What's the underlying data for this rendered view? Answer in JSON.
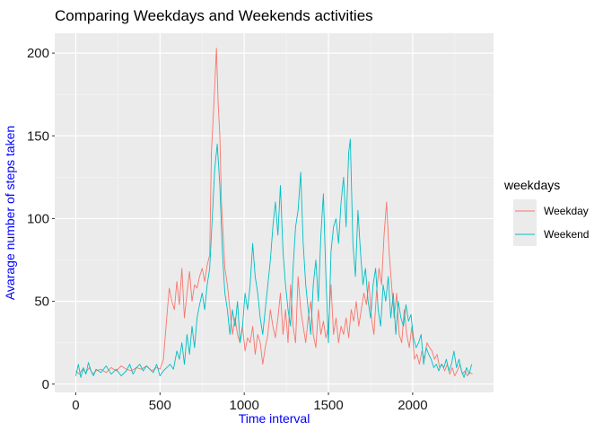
{
  "chart_data": {
    "type": "line",
    "title": "Comparing Weekdays and Weekends activities",
    "xlabel": "Time interval",
    "ylabel": "Avarage number of steps taken",
    "xlim": [
      -125,
      2480
    ],
    "ylim": [
      -5,
      212
    ],
    "x_ticks": [
      0,
      500,
      1000,
      1500,
      2000
    ],
    "y_ticks": [
      0,
      50,
      100,
      150,
      200
    ],
    "x_tick_labels": [
      "0",
      "500",
      "1000",
      "1500",
      "2000"
    ],
    "y_tick_labels": [
      "0",
      "50",
      "100",
      "150",
      "200"
    ],
    "label_color": "#0000ff",
    "panel_color": "#ebebeb",
    "grid": true,
    "legend": {
      "title": "weekdays",
      "position": "right",
      "entries": [
        "Weekday",
        "Weekend"
      ]
    },
    "series": [
      {
        "name": "Weekday",
        "color": "#f8766d",
        "points": [
          [
            0,
            8
          ],
          [
            20,
            6
          ],
          [
            40,
            9
          ],
          [
            60,
            7
          ],
          [
            80,
            10
          ],
          [
            100,
            6
          ],
          [
            120,
            8
          ],
          [
            150,
            9
          ],
          [
            180,
            7
          ],
          [
            210,
            10
          ],
          [
            240,
            8
          ],
          [
            270,
            11
          ],
          [
            300,
            9
          ],
          [
            330,
            8
          ],
          [
            360,
            10
          ],
          [
            390,
            9
          ],
          [
            420,
            11
          ],
          [
            450,
            8
          ],
          [
            480,
            10
          ],
          [
            500,
            9
          ],
          [
            520,
            15
          ],
          [
            540,
            40
          ],
          [
            555,
            58
          ],
          [
            570,
            50
          ],
          [
            585,
            45
          ],
          [
            600,
            62
          ],
          [
            615,
            48
          ],
          [
            630,
            70
          ],
          [
            645,
            40
          ],
          [
            660,
            55
          ],
          [
            675,
            68
          ],
          [
            690,
            50
          ],
          [
            705,
            60
          ],
          [
            720,
            58
          ],
          [
            735,
            65
          ],
          [
            750,
            70
          ],
          [
            765,
            62
          ],
          [
            780,
            72
          ],
          [
            795,
            78
          ],
          [
            805,
            140
          ],
          [
            815,
            160
          ],
          [
            825,
            180
          ],
          [
            835,
            203
          ],
          [
            845,
            170
          ],
          [
            855,
            150
          ],
          [
            865,
            110
          ],
          [
            875,
            90
          ],
          [
            885,
            70
          ],
          [
            900,
            60
          ],
          [
            915,
            45
          ],
          [
            930,
            30
          ],
          [
            945,
            40
          ],
          [
            960,
            30
          ],
          [
            975,
            25
          ],
          [
            990,
            35
          ],
          [
            1005,
            20
          ],
          [
            1020,
            28
          ],
          [
            1035,
            25
          ],
          [
            1050,
            35
          ],
          [
            1065,
            18
          ],
          [
            1080,
            30
          ],
          [
            1095,
            25
          ],
          [
            1110,
            12
          ],
          [
            1125,
            22
          ],
          [
            1140,
            30
          ],
          [
            1155,
            45
          ],
          [
            1170,
            35
          ],
          [
            1185,
            28
          ],
          [
            1200,
            40
          ],
          [
            1215,
            55
          ],
          [
            1230,
            30
          ],
          [
            1245,
            45
          ],
          [
            1260,
            25
          ],
          [
            1275,
            60
          ],
          [
            1290,
            35
          ],
          [
            1305,
            25
          ],
          [
            1320,
            65
          ],
          [
            1335,
            45
          ],
          [
            1350,
            35
          ],
          [
            1365,
            25
          ],
          [
            1380,
            40
          ],
          [
            1395,
            50
          ],
          [
            1410,
            30
          ],
          [
            1425,
            22
          ],
          [
            1440,
            45
          ],
          [
            1455,
            30
          ],
          [
            1470,
            38
          ],
          [
            1485,
            28
          ],
          [
            1500,
            35
          ],
          [
            1515,
            60
          ],
          [
            1530,
            30
          ],
          [
            1545,
            40
          ],
          [
            1560,
            25
          ],
          [
            1575,
            35
          ],
          [
            1590,
            30
          ],
          [
            1605,
            40
          ],
          [
            1620,
            28
          ],
          [
            1635,
            45
          ],
          [
            1650,
            38
          ],
          [
            1665,
            50
          ],
          [
            1680,
            35
          ],
          [
            1695,
            45
          ],
          [
            1710,
            55
          ],
          [
            1725,
            48
          ],
          [
            1740,
            62
          ],
          [
            1755,
            40
          ],
          [
            1770,
            30
          ],
          [
            1785,
            55
          ],
          [
            1800,
            70
          ],
          [
            1815,
            60
          ],
          [
            1830,
            90
          ],
          [
            1845,
            110
          ],
          [
            1860,
            80
          ],
          [
            1875,
            60
          ],
          [
            1890,
            40
          ],
          [
            1905,
            55
          ],
          [
            1920,
            30
          ],
          [
            1935,
            25
          ],
          [
            1950,
            45
          ],
          [
            1965,
            30
          ],
          [
            1980,
            22
          ],
          [
            1995,
            35
          ],
          [
            2010,
            15
          ],
          [
            2025,
            18
          ],
          [
            2040,
            12
          ],
          [
            2055,
            20
          ],
          [
            2070,
            15
          ],
          [
            2085,
            25
          ],
          [
            2100,
            22
          ],
          [
            2115,
            20
          ],
          [
            2130,
            15
          ],
          [
            2145,
            18
          ],
          [
            2160,
            10
          ],
          [
            2175,
            12
          ],
          [
            2190,
            8
          ],
          [
            2205,
            12
          ],
          [
            2220,
            6
          ],
          [
            2235,
            10
          ],
          [
            2250,
            5
          ],
          [
            2265,
            8
          ],
          [
            2280,
            12
          ],
          [
            2295,
            6
          ],
          [
            2310,
            8
          ],
          [
            2325,
            5
          ],
          [
            2340,
            7
          ],
          [
            2355,
            6
          ]
        ]
      },
      {
        "name": "Weekend",
        "color": "#00bfc4",
        "points": [
          [
            0,
            5
          ],
          [
            15,
            12
          ],
          [
            30,
            4
          ],
          [
            45,
            10
          ],
          [
            60,
            6
          ],
          [
            75,
            13
          ],
          [
            90,
            8
          ],
          [
            105,
            5
          ],
          [
            120,
            9
          ],
          [
            150,
            7
          ],
          [
            180,
            11
          ],
          [
            210,
            6
          ],
          [
            240,
            9
          ],
          [
            270,
            5
          ],
          [
            300,
            8
          ],
          [
            320,
            12
          ],
          [
            340,
            6
          ],
          [
            360,
            10
          ],
          [
            380,
            12
          ],
          [
            400,
            8
          ],
          [
            420,
            11
          ],
          [
            440,
            9
          ],
          [
            460,
            7
          ],
          [
            480,
            12
          ],
          [
            500,
            5
          ],
          [
            520,
            8
          ],
          [
            540,
            10
          ],
          [
            560,
            12
          ],
          [
            580,
            9
          ],
          [
            600,
            20
          ],
          [
            615,
            15
          ],
          [
            630,
            25
          ],
          [
            645,
            12
          ],
          [
            660,
            30
          ],
          [
            675,
            18
          ],
          [
            690,
            35
          ],
          [
            705,
            22
          ],
          [
            720,
            40
          ],
          [
            735,
            48
          ],
          [
            750,
            55
          ],
          [
            765,
            45
          ],
          [
            780,
            60
          ],
          [
            795,
            70
          ],
          [
            810,
            100
          ],
          [
            825,
            130
          ],
          [
            840,
            145
          ],
          [
            855,
            120
          ],
          [
            870,
            80
          ],
          [
            885,
            55
          ],
          [
            900,
            45
          ],
          [
            915,
            30
          ],
          [
            930,
            45
          ],
          [
            945,
            35
          ],
          [
            960,
            50
          ],
          [
            975,
            25
          ],
          [
            990,
            35
          ],
          [
            1005,
            55
          ],
          [
            1020,
            45
          ],
          [
            1035,
            60
          ],
          [
            1050,
            85
          ],
          [
            1065,
            65
          ],
          [
            1080,
            55
          ],
          [
            1095,
            40
          ],
          [
            1110,
            30
          ],
          [
            1125,
            45
          ],
          [
            1140,
            60
          ],
          [
            1155,
            75
          ],
          [
            1170,
            95
          ],
          [
            1185,
            110
          ],
          [
            1200,
            90
          ],
          [
            1215,
            120
          ],
          [
            1230,
            80
          ],
          [
            1245,
            60
          ],
          [
            1260,
            45
          ],
          [
            1275,
            35
          ],
          [
            1290,
            70
          ],
          [
            1305,
            95
          ],
          [
            1320,
            105
          ],
          [
            1335,
            128
          ],
          [
            1350,
            85
          ],
          [
            1365,
            60
          ],
          [
            1380,
            45
          ],
          [
            1395,
            30
          ],
          [
            1410,
            60
          ],
          [
            1425,
            75
          ],
          [
            1440,
            50
          ],
          [
            1455,
            90
          ],
          [
            1470,
            115
          ],
          [
            1485,
            65
          ],
          [
            1500,
            25
          ],
          [
            1515,
            80
          ],
          [
            1530,
            95
          ],
          [
            1545,
            100
          ],
          [
            1560,
            85
          ],
          [
            1575,
            110
          ],
          [
            1590,
            125
          ],
          [
            1605,
            95
          ],
          [
            1620,
            140
          ],
          [
            1630,
            148
          ],
          [
            1645,
            85
          ],
          [
            1660,
            65
          ],
          [
            1675,
            105
          ],
          [
            1690,
            80
          ],
          [
            1705,
            60
          ],
          [
            1720,
            70
          ],
          [
            1735,
            50
          ],
          [
            1750,
            40
          ],
          [
            1765,
            60
          ],
          [
            1780,
            70
          ],
          [
            1795,
            45
          ],
          [
            1810,
            35
          ],
          [
            1825,
            60
          ],
          [
            1840,
            50
          ],
          [
            1855,
            65
          ],
          [
            1870,
            40
          ],
          [
            1885,
            55
          ],
          [
            1900,
            30
          ],
          [
            1915,
            50
          ],
          [
            1930,
            40
          ],
          [
            1945,
            35
          ],
          [
            1960,
            48
          ],
          [
            1975,
            38
          ],
          [
            1990,
            42
          ],
          [
            2005,
            28
          ],
          [
            2020,
            22
          ],
          [
            2035,
            25
          ],
          [
            2050,
            30
          ],
          [
            2065,
            12
          ],
          [
            2080,
            22
          ],
          [
            2095,
            18
          ],
          [
            2110,
            15
          ],
          [
            2125,
            10
          ],
          [
            2140,
            12
          ],
          [
            2155,
            8
          ],
          [
            2170,
            12
          ],
          [
            2185,
            10
          ],
          [
            2200,
            15
          ],
          [
            2215,
            8
          ],
          [
            2230,
            12
          ],
          [
            2245,
            20
          ],
          [
            2260,
            10
          ],
          [
            2275,
            15
          ],
          [
            2290,
            8
          ],
          [
            2305,
            4
          ],
          [
            2320,
            10
          ],
          [
            2335,
            6
          ],
          [
            2350,
            12
          ]
        ]
      }
    ]
  }
}
